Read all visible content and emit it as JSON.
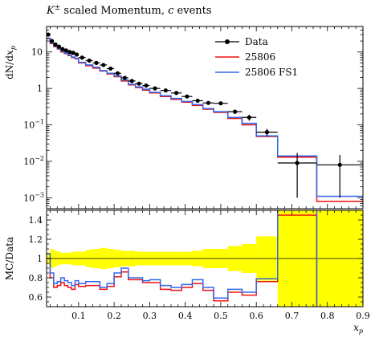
{
  "chart_data": {
    "type": "line",
    "title": "K± scaled Momentum, c events",
    "title_parts": {
      "symbol": "K",
      "superscript": "±",
      "rest": " scaled Momentum, ",
      "italic": "c",
      "end": " events"
    },
    "xlabel": "x_p",
    "xlabel_parts": {
      "base": "x",
      "sub": "p"
    },
    "ylabel": "dN/dx_p",
    "ylabel_parts": {
      "a": "dN/d",
      "b": "x",
      "sub": "p"
    },
    "ratio_ylabel": "MC/Data",
    "x_range": [
      0.01,
      0.9
    ],
    "y_range_log": [
      0.0005,
      50
    ],
    "ratio_range": [
      0.5,
      1.5
    ],
    "legend_position": "top-right",
    "x_ticks": [
      "0.1",
      "0.2",
      "0.3",
      "0.4",
      "0.5",
      "0.6",
      "0.7",
      "0.8",
      "0.9"
    ],
    "x_tick_values": [
      0.1,
      0.2,
      0.3,
      0.4,
      0.5,
      0.6,
      0.7,
      0.8,
      0.9
    ],
    "y_ticks": [
      {
        "value": 0.001,
        "mant": "10",
        "exp": "−3"
      },
      {
        "value": 0.01,
        "mant": "10",
        "exp": "−2"
      },
      {
        "value": 0.1,
        "mant": "10",
        "exp": "−1"
      },
      {
        "value": 1,
        "mant": "1",
        "exp": ""
      },
      {
        "value": 10,
        "mant": "10",
        "exp": ""
      }
    ],
    "ratio_ticks": [
      "0.6",
      "0.8",
      "1",
      "1.2",
      "1.4"
    ],
    "ratio_tick_values": [
      0.6,
      0.8,
      1.0,
      1.2,
      1.4
    ],
    "bin_edges": [
      0.01,
      0.02,
      0.03,
      0.04,
      0.05,
      0.06,
      0.07,
      0.08,
      0.09,
      0.1,
      0.12,
      0.14,
      0.16,
      0.18,
      0.2,
      0.22,
      0.24,
      0.26,
      0.28,
      0.3,
      0.33,
      0.36,
      0.39,
      0.42,
      0.45,
      0.48,
      0.52,
      0.56,
      0.6,
      0.66,
      0.77,
      0.9
    ],
    "series": [
      {
        "name": "Data",
        "color": "#000000",
        "style": "points",
        "values": [
          30,
          20,
          16,
          14,
          12,
          11,
          10,
          9.5,
          8.5,
          7.0,
          5.8,
          5.0,
          4.4,
          3.5,
          2.6,
          1.95,
          1.6,
          1.35,
          1.2,
          1.0,
          0.88,
          0.75,
          0.6,
          0.46,
          0.4,
          0.39,
          0.23,
          0.16,
          0.063,
          0.009,
          0.008
        ],
        "errors": [
          2,
          1.2,
          1,
          0.9,
          0.8,
          0.8,
          0.7,
          0.7,
          0.6,
          0.5,
          0.4,
          0.35,
          0.3,
          0.25,
          0.2,
          0.15,
          0.12,
          0.1,
          0.09,
          0.08,
          0.07,
          0.06,
          0.05,
          0.04,
          0.04,
          0.04,
          0.03,
          0.03,
          0.015,
          0.008,
          0.007
        ]
      },
      {
        "name": "25806",
        "color": "#ee1111",
        "style": "step",
        "values": [
          23,
          17,
          14,
          12,
          10,
          9.0,
          8.0,
          7.0,
          6.5,
          5.0,
          4.2,
          3.6,
          3.0,
          2.5,
          2.1,
          1.6,
          1.25,
          1.05,
          0.9,
          0.75,
          0.6,
          0.5,
          0.42,
          0.34,
          0.27,
          0.22,
          0.15,
          0.1,
          0.048,
          0.013,
          0.0008
        ]
      },
      {
        "name": "25806 FS1",
        "color": "#3366ee",
        "style": "step",
        "values": [
          24,
          18,
          14.5,
          12.5,
          10.5,
          9.3,
          8.3,
          7.3,
          6.7,
          5.2,
          4.4,
          3.8,
          3.1,
          2.6,
          2.2,
          1.7,
          1.3,
          1.1,
          0.95,
          0.78,
          0.63,
          0.53,
          0.44,
          0.36,
          0.28,
          0.23,
          0.16,
          0.11,
          0.05,
          0.014,
          0.0011
        ]
      }
    ],
    "ratio_series": [
      {
        "name": "25806",
        "color": "#ee1111",
        "values": [
          1.0,
          0.8,
          0.7,
          0.72,
          0.75,
          0.72,
          0.7,
          0.68,
          0.73,
          0.71,
          0.72,
          0.72,
          0.68,
          0.71,
          0.81,
          0.86,
          0.78,
          0.78,
          0.75,
          0.75,
          0.68,
          0.67,
          0.7,
          0.74,
          0.67,
          0.56,
          0.65,
          0.62,
          0.76,
          1.45,
          0.1
        ]
      },
      {
        "name": "25806 FS1",
        "color": "#3366ee",
        "values": [
          1.05,
          0.85,
          0.74,
          0.76,
          0.8,
          0.77,
          0.75,
          0.72,
          0.77,
          0.74,
          0.76,
          0.76,
          0.7,
          0.74,
          0.85,
          0.9,
          0.8,
          0.8,
          0.77,
          0.78,
          0.72,
          0.7,
          0.73,
          0.78,
          0.7,
          0.59,
          0.68,
          0.65,
          0.79,
          1.55,
          0.14
        ]
      }
    ],
    "uncertainty_band": {
      "color": "#ffff00",
      "lower": [
        0.94,
        0.9,
        0.92,
        0.93,
        0.94,
        0.94,
        0.94,
        0.93,
        0.93,
        0.93,
        0.91,
        0.9,
        0.89,
        0.9,
        0.91,
        0.92,
        0.92,
        0.93,
        0.93,
        0.93,
        0.93,
        0.93,
        0.93,
        0.92,
        0.9,
        0.9,
        0.87,
        0.85,
        0.77,
        0.0,
        0.0
      ],
      "upper": [
        1.06,
        1.1,
        1.08,
        1.07,
        1.06,
        1.06,
        1.06,
        1.07,
        1.07,
        1.07,
        1.09,
        1.1,
        1.11,
        1.1,
        1.09,
        1.08,
        1.08,
        1.07,
        1.07,
        1.07,
        1.07,
        1.07,
        1.07,
        1.08,
        1.1,
        1.1,
        1.13,
        1.15,
        1.23,
        2.0,
        2.0
      ]
    }
  }
}
